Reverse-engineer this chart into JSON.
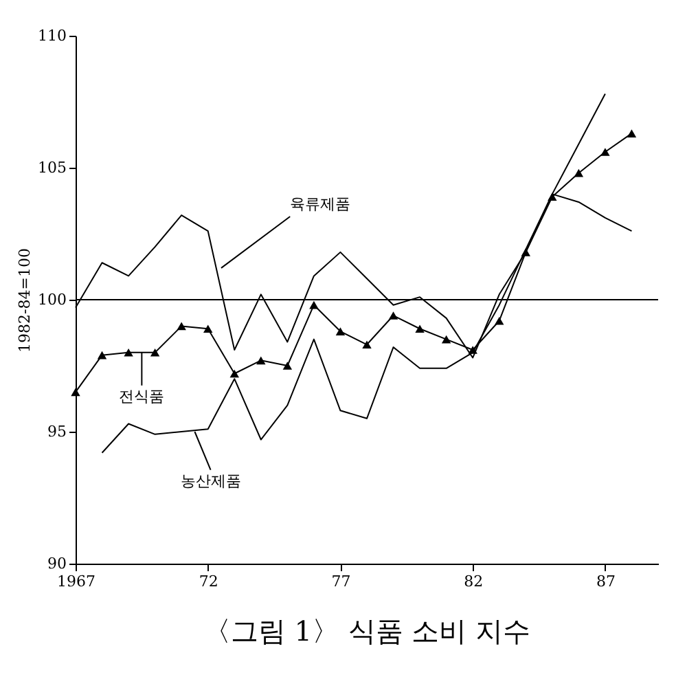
{
  "chart_data": {
    "type": "line",
    "title": "〈그림 1〉 식품 소비 지수",
    "ylabel": "1982-84=100",
    "x": [
      1967,
      1968,
      1969,
      1970,
      1971,
      1972,
      1973,
      1974,
      1975,
      1976,
      1977,
      1978,
      1979,
      1980,
      1981,
      1982,
      1983,
      1984,
      1985,
      1986,
      1987,
      1988
    ],
    "series": [
      {
        "color": "#000000",
        "marker": "none",
        "values": [
          99.7,
          101.4,
          100.9,
          102.0,
          103.2,
          102.6,
          98.1,
          100.2,
          98.4,
          100.9,
          101.8,
          100.8,
          99.8,
          100.1,
          99.3,
          97.8,
          100.2,
          101.8,
          104.0,
          103.7,
          103.1,
          102.6
        ]
      },
      {
        "color": "#000000",
        "marker": "triangle",
        "values": [
          96.5,
          97.9,
          98.0,
          98.0,
          99.0,
          98.9,
          97.2,
          97.7,
          97.5,
          99.8,
          98.8,
          98.3,
          99.4,
          98.9,
          98.5,
          98.1,
          99.2,
          101.8,
          103.9,
          104.8,
          105.6,
          106.3
        ]
      },
      {
        "color": "#000000",
        "marker": "none",
        "values": [
          null,
          94.2,
          95.3,
          94.9,
          95.0,
          95.1,
          97.0,
          94.7,
          96.0,
          98.5,
          95.8,
          95.5,
          98.2,
          97.4,
          97.4,
          98.0,
          99.8,
          101.9,
          104.0,
          105.9,
          107.8,
          null
        ]
      }
    ],
    "annotations": [
      {
        "text": "육류제품",
        "x": 1972.5,
        "y": 101.2
      },
      {
        "text": "전식품",
        "x": 1969.5,
        "y": 98.0
      },
      {
        "text": "농산제품",
        "x": 1971.5,
        "y": 95.0
      }
    ],
    "ref_lines": [
      {
        "axis": "y",
        "value": 100,
        "color": "#000000"
      }
    ],
    "xlim": [
      1967,
      1989
    ],
    "xticks": [
      1967,
      {
        "value": 1972,
        "label": "72"
      },
      {
        "value": 1977,
        "label": "77"
      },
      {
        "value": 1982,
        "label": "82"
      },
      {
        "value": 1987,
        "label": "87"
      }
    ],
    "ylim": [
      90,
      110
    ],
    "yticks": [
      90,
      95,
      100,
      105,
      110
    ],
    "grid": false,
    "line_style": "solid"
  }
}
